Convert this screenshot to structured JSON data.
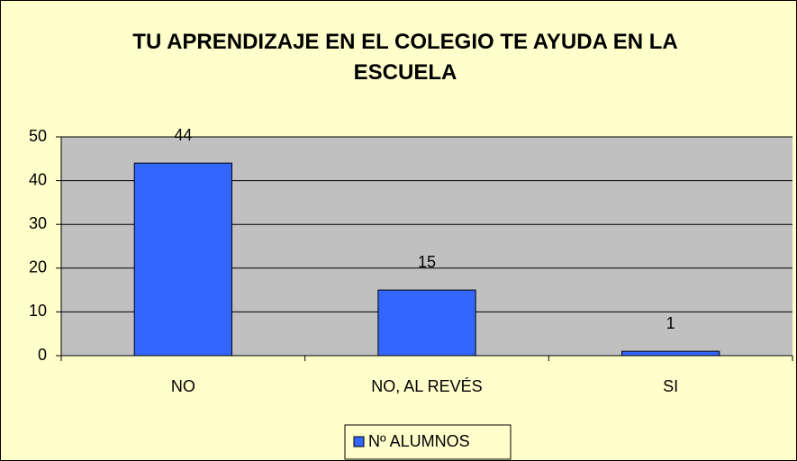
{
  "chart_data": {
    "type": "bar",
    "title": "TU APRENDIZAJE EN EL COLEGIO TE AYUDA EN LA ESCUELA",
    "categories": [
      "NO",
      "NO, AL REVÉS",
      "SI"
    ],
    "series": [
      {
        "name": "Nº ALUMNOS",
        "color": "#3366ff",
        "values": [
          44,
          15,
          1
        ]
      }
    ],
    "ylim": [
      0,
      50
    ],
    "yticks": [
      0,
      10,
      20,
      30,
      40,
      50
    ],
    "grid": true,
    "legend": "bottom"
  }
}
